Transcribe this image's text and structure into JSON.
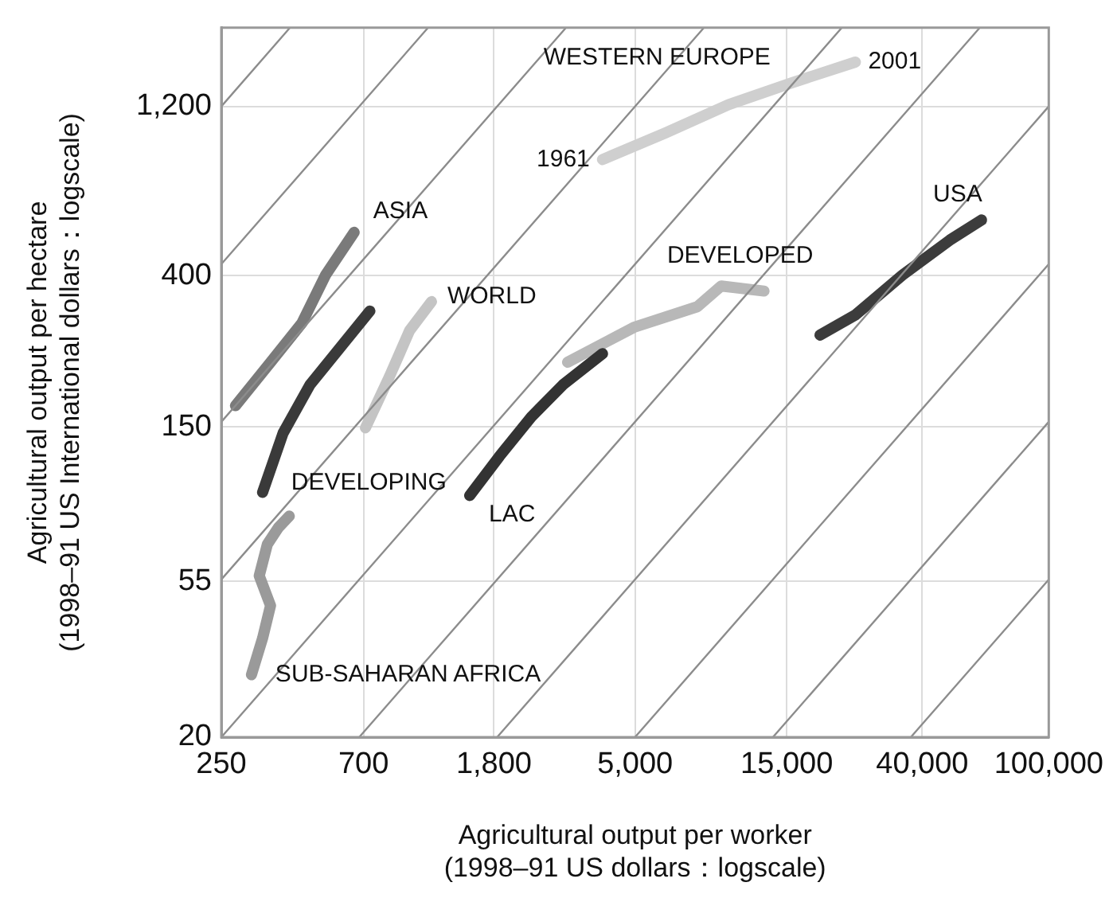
{
  "chart_data": {
    "type": "line",
    "xlabel": "Agricultural output per worker\n(1998–91 US dollars：logscale)",
    "ylabel": "Agricultural output per hectare\n(1998–91 US International dollars：logscale)",
    "log": "xy",
    "grid": true,
    "legend": false,
    "marker": "none",
    "line_style": "solid",
    "xlim": [
      250,
      100000
    ],
    "ylim": [
      20,
      2000
    ],
    "xticks": [
      250,
      700,
      {
        "value": 1800,
        "label": "1,800"
      },
      {
        "value": 5000,
        "label": "5,000"
      },
      {
        "value": 15000,
        "label": "15,000"
      },
      {
        "value": 40000,
        "label": "40,000"
      },
      {
        "value": 100000,
        "label": "100,000"
      }
    ],
    "yticks": [
      20,
      55,
      150,
      400,
      {
        "value": 1200,
        "label": "1,200"
      }
    ],
    "series": [
      {
        "color": "#8c8c8c",
        "x": [
          250,
          411
        ],
        "values": [
          1200,
          2000
        ]
      },
      {
        "color": "#8c8c8c",
        "x": [
          250,
          1117
        ],
        "values": [
          431,
          2000
        ]
      },
      {
        "color": "#8c8c8c",
        "x": [
          250,
          3033
        ],
        "values": [
          154.9,
          2000
        ]
      },
      {
        "color": "#8c8c8c",
        "x": [
          250,
          8234
        ],
        "values": [
          55.66,
          2000
        ]
      },
      {
        "color": "#8c8c8c",
        "x": [
          250,
          22350
        ],
        "values": [
          20,
          2000
        ]
      },
      {
        "color": "#8c8c8c",
        "x": [
          678.5,
          60680
        ],
        "values": [
          20,
          2000
        ]
      },
      {
        "color": "#8c8c8c",
        "x": [
          1841.5,
          100000
        ],
        "values": [
          20,
          1200
        ]
      },
      {
        "color": "#8c8c8c",
        "x": [
          4998,
          100000
        ],
        "values": [
          20,
          431
        ]
      },
      {
        "color": "#8c8c8c",
        "x": [
          13566,
          100000
        ],
        "values": [
          20,
          154.9
        ]
      },
      {
        "color": "#8c8c8c",
        "x": [
          36820,
          100000
        ],
        "values": [
          20,
          55.66
        ]
      },
      {
        "name": "ASIA",
        "color": "#7a7a7a",
        "x": [
          277,
          357,
          448,
          532,
          654
        ],
        "values": [
          172,
          228,
          294,
          402,
          530
        ]
      },
      {
        "name": "DEVELOPING",
        "color": "#3a3a3a",
        "x": [
          337,
          391,
          475,
          598,
          733
        ],
        "values": [
          98,
          144,
          197,
          254,
          318
        ]
      },
      {
        "name": "WORLD",
        "color": "#c4c4c4",
        "x": [
          710,
          843,
          977,
          1145
        ],
        "values": [
          149,
          207,
          280,
          338
        ]
      },
      {
        "name": "SUB-SAHARAN AFRICA",
        "color": "#9a9a9a",
        "x": [
          311,
          337,
          357,
          329,
          349,
          378,
          409
        ],
        "values": [
          30,
          38,
          47,
          57,
          70,
          78,
          84
        ]
      },
      {
        "name": "LAC",
        "color": "#333333",
        "x": [
          1510,
          1875,
          2360,
          2967,
          3950
        ],
        "values": [
          96,
          124,
          160,
          197,
          241
        ]
      },
      {
        "name": "DEVELOPED",
        "color": "#b8b8b8",
        "x": [
          3068,
          4958,
          7850,
          9330,
          12720
        ],
        "values": [
          228,
          286,
          327,
          374,
          362
        ]
      },
      {
        "name": "USA",
        "color": "#3c3c3c",
        "x": [
          19080,
          24650,
          34700,
          48870,
          61450
        ],
        "values": [
          272,
          310,
          402,
          504,
          574
        ]
      },
      {
        "name": "WESTERN EUROPE",
        "color": "#cfcfcf",
        "x": [
          3950,
          6230,
          9850,
          15600,
          24650
        ],
        "values": [
          850,
          1010,
          1214,
          1400,
          1600
        ]
      }
    ],
    "annotations": [
      {
        "text": "1961",
        "x": 3950,
        "y": 850
      },
      {
        "text": "2001",
        "x": 24650,
        "y": 1600
      }
    ]
  }
}
